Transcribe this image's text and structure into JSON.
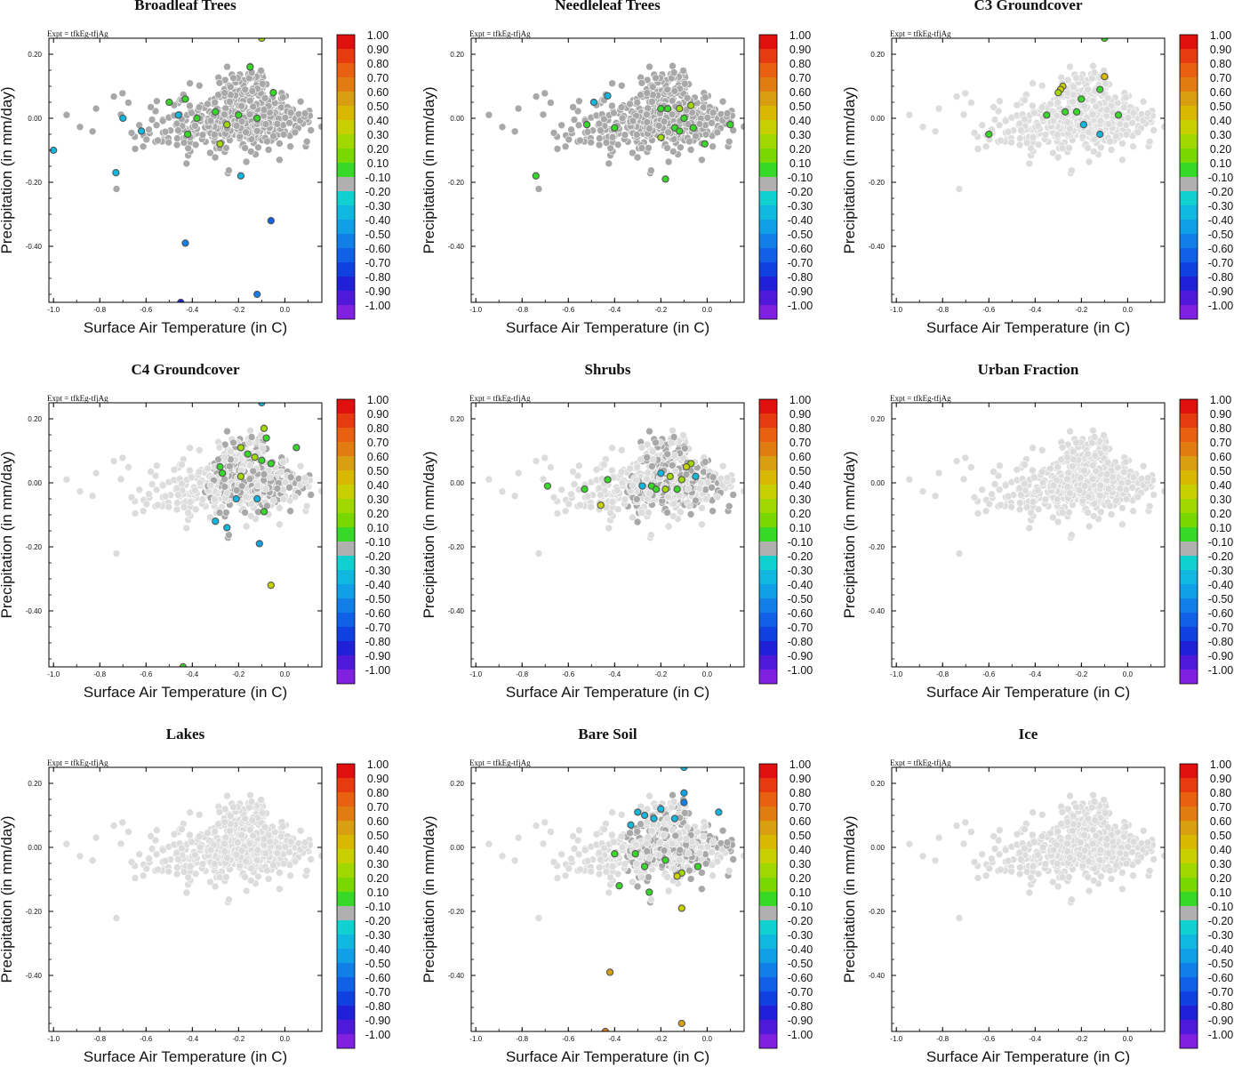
{
  "experiment_label": "Expt = tfkEg-tfjAg",
  "colorbar": {
    "levels": [
      "1.00",
      "0.90",
      "0.80",
      "0.70",
      "0.60",
      "0.50",
      "0.40",
      "0.30",
      "0.20",
      "0.10",
      "-0.10",
      "-0.20",
      "-0.30",
      "-0.40",
      "-0.50",
      "-0.60",
      "-0.70",
      "-0.80",
      "-0.90",
      "-1.00"
    ],
    "colors": [
      "#e01010",
      "#e83a10",
      "#e86010",
      "#e07c10",
      "#d8a010",
      "#d8b800",
      "#c8d000",
      "#a0d800",
      "#78d800",
      "#38d828",
      "#b0b0b0",
      "#10d0d0",
      "#10b8e0",
      "#10a0e8",
      "#1080e8",
      "#1060e8",
      "#1040e0",
      "#2020d8",
      "#5018d8",
      "#8020e0"
    ]
  },
  "palette": {
    "neutral_light": "#dcdcdc",
    "neutral_dark": "#a8a8a8",
    "point_edge": "#ffffff"
  },
  "chart_data": [
    {
      "type": "scatter",
      "title": "Broadleaf Trees",
      "xlabel": "Surface Air Temperature (in C)",
      "ylabel": "Precipitation (in mm/day)",
      "xlim": [
        -1.02,
        0.16
      ],
      "ylim": [
        -0.575,
        0.25
      ],
      "xticks": [
        "-1.0",
        "-0.8",
        "-0.6",
        "-0.4",
        "-0.2",
        "0.0"
      ],
      "yticks": [
        "0.20",
        "0.00",
        "-0.20",
        "-0.40"
      ],
      "background_cloud": "dark",
      "highlighted_points": [
        {
          "x": -0.1,
          "y": 0.25,
          "value": 0.3
        },
        {
          "x": -0.15,
          "y": 0.16,
          "value": 0.1
        },
        {
          "x": -0.05,
          "y": 0.08,
          "value": 0.1
        },
        {
          "x": -0.5,
          "y": 0.05,
          "value": 0.1
        },
        {
          "x": -0.43,
          "y": 0.06,
          "value": 0.1
        },
        {
          "x": -0.38,
          "y": 0.0,
          "value": 0.1
        },
        {
          "x": -0.3,
          "y": 0.02,
          "value": 0.1
        },
        {
          "x": -0.2,
          "y": 0.01,
          "value": 0.1
        },
        {
          "x": -0.12,
          "y": 0.0,
          "value": 0.1
        },
        {
          "x": -0.25,
          "y": -0.02,
          "value": 0.3
        },
        {
          "x": -0.42,
          "y": -0.05,
          "value": 0.1
        },
        {
          "x": -0.28,
          "y": -0.08,
          "value": 0.3
        },
        {
          "x": -0.7,
          "y": 0.0,
          "value": -0.3
        },
        {
          "x": -0.62,
          "y": -0.04,
          "value": -0.3
        },
        {
          "x": -0.46,
          "y": 0.01,
          "value": -0.3
        },
        {
          "x": -1.0,
          "y": -0.1,
          "value": -0.3
        },
        {
          "x": -0.73,
          "y": -0.17,
          "value": -0.3
        },
        {
          "x": -0.19,
          "y": -0.18,
          "value": -0.3
        },
        {
          "x": -0.06,
          "y": -0.32,
          "value": -0.6
        },
        {
          "x": -0.43,
          "y": -0.39,
          "value": -0.5
        },
        {
          "x": -0.12,
          "y": -0.55,
          "value": -0.5
        },
        {
          "x": -0.45,
          "y": -0.575,
          "value": -0.8
        }
      ]
    },
    {
      "type": "scatter",
      "title": "Needleleaf Trees",
      "xlabel": "Surface Air Temperature (in C)",
      "ylabel": "Precipitation (in mm/day)",
      "xlim": [
        -1.02,
        0.16
      ],
      "ylim": [
        -0.575,
        0.25
      ],
      "xticks": [
        "-1.0",
        "-0.8",
        "-0.6",
        "-0.4",
        "-0.2",
        "0.0"
      ],
      "yticks": [
        "0.20",
        "0.00",
        "-0.20",
        "-0.40"
      ],
      "background_cloud": "dark",
      "highlighted_points": [
        {
          "x": -0.49,
          "y": 0.05,
          "value": -0.3
        },
        {
          "x": -0.43,
          "y": 0.07,
          "value": -0.3
        },
        {
          "x": -0.52,
          "y": -0.02,
          "value": 0.1
        },
        {
          "x": -0.4,
          "y": -0.03,
          "value": 0.1
        },
        {
          "x": -0.2,
          "y": 0.03,
          "value": 0.1
        },
        {
          "x": -0.17,
          "y": 0.03,
          "value": 0.1
        },
        {
          "x": -0.12,
          "y": 0.03,
          "value": 0.3
        },
        {
          "x": -0.07,
          "y": 0.04,
          "value": 0.3
        },
        {
          "x": -0.1,
          "y": 0.0,
          "value": 0.1
        },
        {
          "x": -0.14,
          "y": -0.03,
          "value": 0.1
        },
        {
          "x": -0.06,
          "y": -0.03,
          "value": 0.1
        },
        {
          "x": 0.1,
          "y": -0.02,
          "value": 0.1
        },
        {
          "x": -0.2,
          "y": -0.06,
          "value": 0.3
        },
        {
          "x": -0.12,
          "y": -0.04,
          "value": 0.1
        },
        {
          "x": -0.01,
          "y": -0.08,
          "value": 0.1
        },
        {
          "x": -0.74,
          "y": -0.18,
          "value": 0.1
        },
        {
          "x": -0.18,
          "y": -0.19,
          "value": 0.1
        }
      ]
    },
    {
      "type": "scatter",
      "title": "C3 Groundcover",
      "xlabel": "Surface Air Temperature (in C)",
      "ylabel": "Precipitation (in mm/day)",
      "xlim": [
        -1.02,
        0.16
      ],
      "ylim": [
        -0.575,
        0.25
      ],
      "xticks": [
        "-1.0",
        "-0.8",
        "-0.6",
        "-0.4",
        "-0.2",
        "0.0"
      ],
      "yticks": [
        "0.20",
        "0.00",
        "-0.20",
        "-0.40"
      ],
      "background_cloud": "light",
      "highlighted_points": [
        {
          "x": -0.1,
          "y": 0.25,
          "value": 0.1
        },
        {
          "x": -0.1,
          "y": 0.13,
          "value": 0.5
        },
        {
          "x": -0.28,
          "y": 0.1,
          "value": 0.4
        },
        {
          "x": -0.29,
          "y": 0.09,
          "value": 0.4
        },
        {
          "x": -0.3,
          "y": 0.08,
          "value": 0.3
        },
        {
          "x": -0.2,
          "y": 0.06,
          "value": 0.1
        },
        {
          "x": -0.12,
          "y": 0.09,
          "value": 0.1
        },
        {
          "x": -0.35,
          "y": 0.01,
          "value": 0.1
        },
        {
          "x": -0.27,
          "y": 0.02,
          "value": 0.1
        },
        {
          "x": -0.22,
          "y": 0.02,
          "value": 0.1
        },
        {
          "x": -0.04,
          "y": 0.01,
          "value": 0.1
        },
        {
          "x": -0.6,
          "y": -0.05,
          "value": 0.1
        },
        {
          "x": -0.19,
          "y": -0.02,
          "value": -0.3
        },
        {
          "x": -0.12,
          "y": -0.05,
          "value": -0.3
        }
      ]
    },
    {
      "type": "scatter",
      "title": "C4 Groundcover",
      "xlabel": "Surface Air Temperature (in C)",
      "ylabel": "Precipitation (in mm/day)",
      "xlim": [
        -1.02,
        0.16
      ],
      "ylim": [
        -0.575,
        0.25
      ],
      "xticks": [
        "-1.0",
        "-0.8",
        "-0.6",
        "-0.4",
        "-0.2",
        "0.0"
      ],
      "yticks": [
        "0.20",
        "0.00",
        "-0.20",
        "-0.40"
      ],
      "background_cloud": "mixed",
      "highlighted_points": [
        {
          "x": -0.1,
          "y": 0.25,
          "value": -0.3
        },
        {
          "x": -0.09,
          "y": 0.17,
          "value": 0.3
        },
        {
          "x": -0.08,
          "y": 0.14,
          "value": 0.1
        },
        {
          "x": -0.19,
          "y": 0.11,
          "value": 0.3
        },
        {
          "x": -0.16,
          "y": 0.09,
          "value": 0.1
        },
        {
          "x": 0.05,
          "y": 0.11,
          "value": 0.1
        },
        {
          "x": -0.13,
          "y": 0.08,
          "value": 0.3
        },
        {
          "x": -0.1,
          "y": 0.07,
          "value": 0.1
        },
        {
          "x": -0.06,
          "y": 0.06,
          "value": 0.1
        },
        {
          "x": -0.28,
          "y": 0.05,
          "value": 0.1
        },
        {
          "x": -0.27,
          "y": 0.03,
          "value": 0.1
        },
        {
          "x": -0.19,
          "y": 0.02,
          "value": 0.3
        },
        {
          "x": -0.21,
          "y": -0.05,
          "value": -0.3
        },
        {
          "x": -0.12,
          "y": -0.05,
          "value": -0.3
        },
        {
          "x": -0.09,
          "y": -0.09,
          "value": 0.1
        },
        {
          "x": -0.3,
          "y": -0.12,
          "value": -0.3
        },
        {
          "x": -0.25,
          "y": -0.14,
          "value": -0.3
        },
        {
          "x": -0.11,
          "y": -0.19,
          "value": -0.4
        },
        {
          "x": -0.06,
          "y": -0.32,
          "value": 0.4
        },
        {
          "x": -0.44,
          "y": -0.575,
          "value": 0.1
        }
      ]
    },
    {
      "type": "scatter",
      "title": "Shrubs",
      "xlabel": "Surface Air Temperature (in C)",
      "ylabel": "Precipitation (in mm/day)",
      "xlim": [
        -1.02,
        0.16
      ],
      "ylim": [
        -0.575,
        0.25
      ],
      "xticks": [
        "-1.0",
        "-0.8",
        "-0.6",
        "-0.4",
        "-0.2",
        "0.0"
      ],
      "yticks": [
        "0.20",
        "0.00",
        "-0.20",
        "-0.40"
      ],
      "background_cloud": "mixed",
      "highlighted_points": [
        {
          "x": -0.07,
          "y": 0.06,
          "value": 0.3
        },
        {
          "x": -0.09,
          "y": 0.05,
          "value": 0.4
        },
        {
          "x": -0.16,
          "y": 0.02,
          "value": 0.3
        },
        {
          "x": -0.11,
          "y": 0.01,
          "value": 0.3
        },
        {
          "x": -0.24,
          "y": -0.01,
          "value": 0.1
        },
        {
          "x": -0.22,
          "y": -0.02,
          "value": 0.1
        },
        {
          "x": -0.18,
          "y": -0.02,
          "value": 0.3
        },
        {
          "x": -0.13,
          "y": -0.02,
          "value": 0.1
        },
        {
          "x": -0.43,
          "y": 0.01,
          "value": 0.1
        },
        {
          "x": -0.53,
          "y": -0.02,
          "value": 0.1
        },
        {
          "x": -0.69,
          "y": -0.01,
          "value": 0.1
        },
        {
          "x": -0.46,
          "y": -0.07,
          "value": 0.4
        },
        {
          "x": -0.05,
          "y": 0.02,
          "value": -0.3
        },
        {
          "x": -0.2,
          "y": 0.03,
          "value": -0.3
        },
        {
          "x": -0.28,
          "y": -0.01,
          "value": -0.3
        }
      ]
    },
    {
      "type": "scatter",
      "title": "Urban Fraction",
      "xlabel": "Surface Air Temperature (in C)",
      "ylabel": "Precipitation (in mm/day)",
      "xlim": [
        -1.02,
        0.16
      ],
      "ylim": [
        -0.575,
        0.25
      ],
      "xticks": [
        "-1.0",
        "-0.8",
        "-0.6",
        "-0.4",
        "-0.2",
        "0.0"
      ],
      "yticks": [
        "0.20",
        "0.00",
        "-0.20",
        "-0.40"
      ],
      "background_cloud": "light",
      "highlighted_points": []
    },
    {
      "type": "scatter",
      "title": "Lakes",
      "xlabel": "Surface Air Temperature (in C)",
      "ylabel": "Precipitation (in mm/day)",
      "xlim": [
        -1.02,
        0.16
      ],
      "ylim": [
        -0.575,
        0.25
      ],
      "xticks": [
        "-1.0",
        "-0.8",
        "-0.6",
        "-0.4",
        "-0.2",
        "0.0"
      ],
      "yticks": [
        "0.20",
        "0.00",
        "-0.20",
        "-0.40"
      ],
      "background_cloud": "light",
      "highlighted_points": []
    },
    {
      "type": "scatter",
      "title": "Bare Soil",
      "xlabel": "Surface Air Temperature (in C)",
      "ylabel": "Precipitation (in mm/day)",
      "xlim": [
        -1.02,
        0.16
      ],
      "ylim": [
        -0.575,
        0.25
      ],
      "xticks": [
        "-1.0",
        "-0.8",
        "-0.6",
        "-0.4",
        "-0.2",
        "0.0"
      ],
      "yticks": [
        "0.20",
        "0.00",
        "-0.20",
        "-0.40"
      ],
      "background_cloud": "mixed",
      "highlighted_points": [
        {
          "x": -0.1,
          "y": 0.25,
          "value": -0.3
        },
        {
          "x": -0.1,
          "y": 0.17,
          "value": -0.4
        },
        {
          "x": -0.1,
          "y": 0.14,
          "value": -0.5
        },
        {
          "x": -0.2,
          "y": 0.12,
          "value": -0.3
        },
        {
          "x": 0.05,
          "y": 0.11,
          "value": -0.3
        },
        {
          "x": -0.3,
          "y": 0.11,
          "value": -0.3
        },
        {
          "x": -0.27,
          "y": 0.1,
          "value": -0.3
        },
        {
          "x": -0.23,
          "y": 0.09,
          "value": -0.3
        },
        {
          "x": -0.14,
          "y": 0.09,
          "value": -0.3
        },
        {
          "x": -0.33,
          "y": 0.07,
          "value": -0.3
        },
        {
          "x": -0.4,
          "y": -0.02,
          "value": 0.1
        },
        {
          "x": -0.31,
          "y": -0.02,
          "value": 0.1
        },
        {
          "x": -0.18,
          "y": -0.04,
          "value": 0.1
        },
        {
          "x": -0.27,
          "y": -0.06,
          "value": 0.1
        },
        {
          "x": -0.11,
          "y": -0.08,
          "value": 0.3
        },
        {
          "x": -0.13,
          "y": -0.09,
          "value": 0.4
        },
        {
          "x": -0.04,
          "y": -0.06,
          "value": 0.1
        },
        {
          "x": -0.38,
          "y": -0.12,
          "value": 0.1
        },
        {
          "x": -0.25,
          "y": -0.14,
          "value": 0.1
        },
        {
          "x": -0.11,
          "y": -0.19,
          "value": 0.4
        },
        {
          "x": -0.42,
          "y": -0.39,
          "value": 0.6
        },
        {
          "x": -0.11,
          "y": -0.55,
          "value": 0.6
        },
        {
          "x": -0.44,
          "y": -0.575,
          "value": 0.7
        }
      ]
    },
    {
      "type": "scatter",
      "title": "Ice",
      "xlabel": "Surface Air Temperature (in C)",
      "ylabel": "Precipitation (in mm/day)",
      "xlim": [
        -1.02,
        0.16
      ],
      "ylim": [
        -0.575,
        0.25
      ],
      "xticks": [
        "-1.0",
        "-0.8",
        "-0.6",
        "-0.4",
        "-0.2",
        "0.0"
      ],
      "yticks": [
        "0.20",
        "0.00",
        "-0.20",
        "-0.40"
      ],
      "background_cloud": "light",
      "highlighted_points": []
    }
  ]
}
